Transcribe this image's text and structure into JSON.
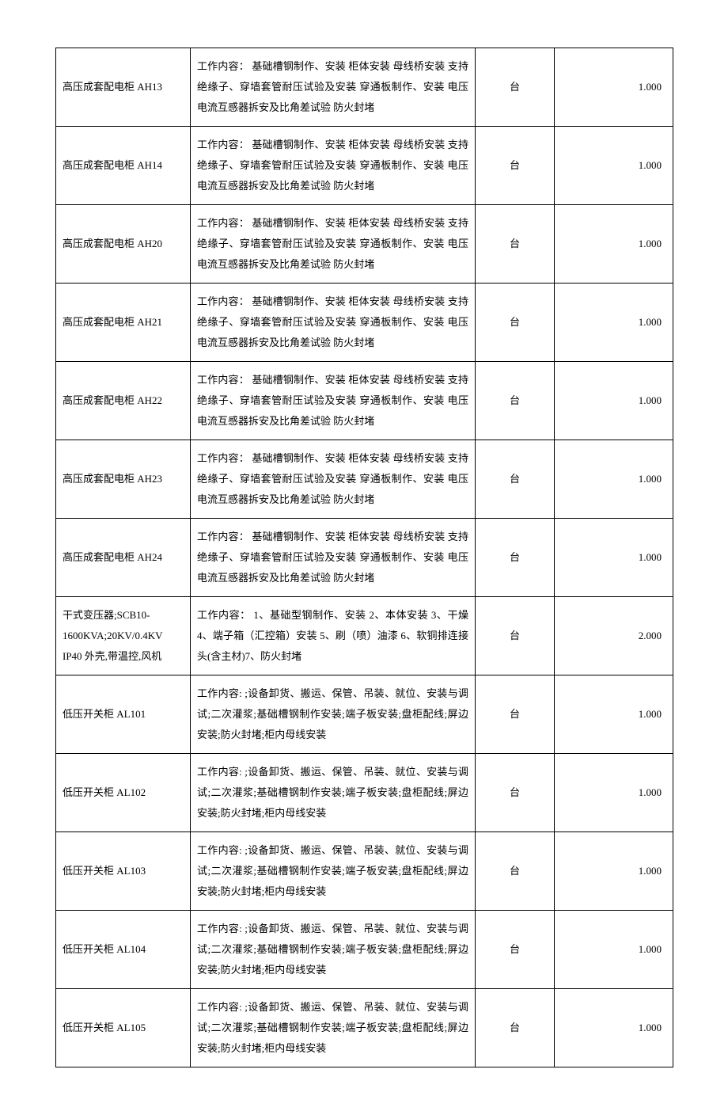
{
  "table": {
    "columns": {
      "name_width": 170,
      "desc_width": 360,
      "unit_width": 100,
      "qty_width": 150
    },
    "colors": {
      "border": "#000000",
      "text": "#000000",
      "background": "#ffffff"
    },
    "typography": {
      "font_family": "SimSun",
      "font_size": 13,
      "line_height": 2.0
    },
    "rows": [
      {
        "name": "高压成套配电柜 AH13",
        "desc": "工作内容：  基础槽钢制作、安装 柜体安装 母线桥安装 支持绝缘子、穿墙套管耐压试验及安装 穿通板制作、安装 电压电流互感器拆安及比角差试验 防火封堵",
        "unit": "台",
        "qty": "1.000"
      },
      {
        "name": "高压成套配电柜 AH14",
        "desc": "工作内容：  基础槽钢制作、安装 柜体安装 母线桥安装 支持绝缘子、穿墙套管耐压试验及安装 穿通板制作、安装 电压电流互感器拆安及比角差试验 防火封堵",
        "unit": "台",
        "qty": "1.000"
      },
      {
        "name": "高压成套配电柜 AH20",
        "desc": "工作内容：  基础槽钢制作、安装 柜体安装 母线桥安装 支持绝缘子、穿墙套管耐压试验及安装 穿通板制作、安装 电压电流互感器拆安及比角差试验 防火封堵",
        "unit": "台",
        "qty": "1.000"
      },
      {
        "name": "高压成套配电柜 AH21",
        "desc": "工作内容：  基础槽钢制作、安装 柜体安装 母线桥安装 支持绝缘子、穿墙套管耐压试验及安装 穿通板制作、安装 电压电流互感器拆安及比角差试验 防火封堵",
        "unit": "台",
        "qty": "1.000"
      },
      {
        "name": "高压成套配电柜 AH22",
        "desc": "工作内容：  基础槽钢制作、安装 柜体安装 母线桥安装 支持绝缘子、穿墙套管耐压试验及安装 穿通板制作、安装 电压电流互感器拆安及比角差试验 防火封堵",
        "unit": "台",
        "qty": "1.000"
      },
      {
        "name": "高压成套配电柜 AH23",
        "desc": "工作内容：  基础槽钢制作、安装 柜体安装 母线桥安装 支持绝缘子、穿墙套管耐压试验及安装 穿通板制作、安装 电压电流互感器拆安及比角差试验 防火封堵",
        "unit": "台",
        "qty": "1.000"
      },
      {
        "name": "高压成套配电柜 AH24",
        "desc": "工作内容：  基础槽钢制作、安装 柜体安装 母线桥安装 支持绝缘子、穿墙套管耐压试验及安装 穿通板制作、安装 电压电流互感器拆安及比角差试验 防火封堵",
        "unit": "台",
        "qty": "1.000"
      },
      {
        "name": "干式变压器;SCB10-1600KVA;20KV/0.4KV IP40 外壳,带温控,风机",
        "desc": "工作内容：  1、基础型钢制作、安装 2、本体安装 3、干燥 4、端子箱（汇控箱）安装 5、刷（喷）油漆 6、软铜排连接头(含主材)7、防火封堵",
        "unit": "台",
        "qty": "2.000"
      },
      {
        "name": "低压开关柜 AL101",
        "desc": "工作内容: ;设备卸货、搬运、保管、吊装、就位、安装与调试;二次灌浆;基础槽钢制作安装;端子板安装;盘柜配线;屏边安装;防火封堵;柜内母线安装",
        "unit": "台",
        "qty": "1.000"
      },
      {
        "name": "低压开关柜 AL102",
        "desc": "工作内容: ;设备卸货、搬运、保管、吊装、就位、安装与调试;二次灌浆;基础槽钢制作安装;端子板安装;盘柜配线;屏边安装;防火封堵;柜内母线安装",
        "unit": "台",
        "qty": "1.000"
      },
      {
        "name": "低压开关柜 AL103",
        "desc": "工作内容: ;设备卸货、搬运、保管、吊装、就位、安装与调试;二次灌浆;基础槽钢制作安装;端子板安装;盘柜配线;屏边安装;防火封堵;柜内母线安装",
        "unit": "台",
        "qty": "1.000"
      },
      {
        "name": "低压开关柜 AL104",
        "desc": "工作内容: ;设备卸货、搬运、保管、吊装、就位、安装与调试;二次灌浆;基础槽钢制作安装;端子板安装;盘柜配线;屏边安装;防火封堵;柜内母线安装",
        "unit": "台",
        "qty": "1.000"
      },
      {
        "name": "低压开关柜 AL105",
        "desc": "工作内容: ;设备卸货、搬运、保管、吊装、就位、安装与调试;二次灌浆;基础槽钢制作安装;端子板安装;盘柜配线;屏边安装;防火封堵;柜内母线安装",
        "unit": "台",
        "qty": "1.000"
      }
    ]
  }
}
